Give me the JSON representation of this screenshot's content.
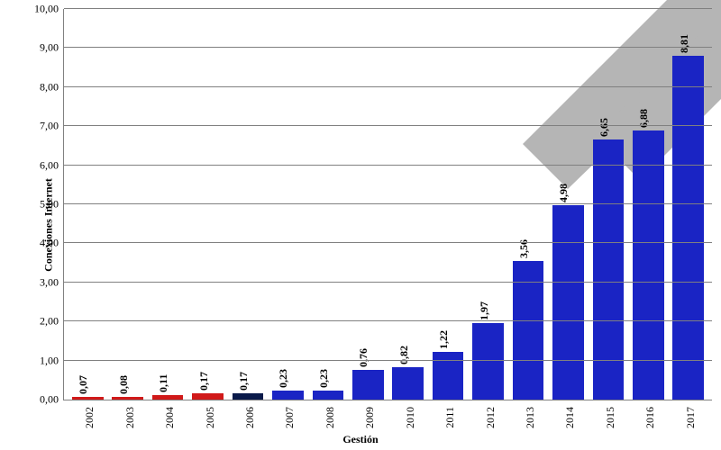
{
  "chart": {
    "type": "bar",
    "ylabel": "Conexiones Internet",
    "xlabel": "Gestión",
    "ylim": [
      0,
      10
    ],
    "ytick_step": 1,
    "decimal_separator": ",",
    "decimals": 2,
    "background_color": "#ffffff",
    "grid_color": "#808080",
    "axis_color": "#808080",
    "label_fontsize": 12,
    "value_fontsize": 12,
    "bar_width": 0.78,
    "categories": [
      "2002",
      "2003",
      "2004",
      "2005",
      "2006",
      "2007",
      "2008",
      "2009",
      "2010",
      "2011",
      "2012",
      "2013",
      "2014",
      "2015",
      "2016",
      "2017"
    ],
    "values": [
      0.07,
      0.08,
      0.11,
      0.17,
      0.17,
      0.23,
      0.23,
      0.76,
      0.82,
      1.22,
      1.97,
      3.56,
      4.98,
      6.65,
      6.88,
      8.81
    ],
    "bar_colors": [
      "#d11919",
      "#d11919",
      "#d11919",
      "#d11919",
      "#0a1a4a",
      "#1a24c4",
      "#1a24c4",
      "#1a24c4",
      "#1a24c4",
      "#1a24c4",
      "#1a24c4",
      "#1a24c4",
      "#1a24c4",
      "#1a24c4",
      "#1a24c4",
      "#1a24c4"
    ],
    "decoration": {
      "chevron_color": "#b5b5b5",
      "visible_corner": "top-right"
    }
  }
}
